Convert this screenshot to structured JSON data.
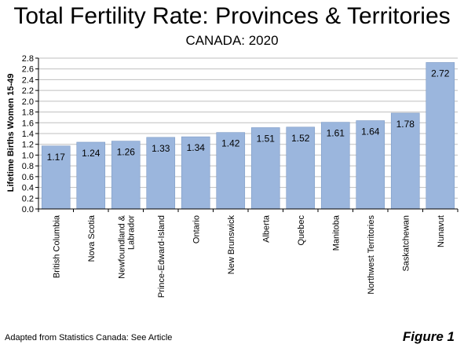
{
  "header": {
    "title": "Total Fertility Rate: Provinces & Territories",
    "subtitle": "CANADA: 2020"
  },
  "footer": {
    "source": "Adapted from Statistics Canada: See Article",
    "figure_label": "Figure 1"
  },
  "colors": {
    "bar": "#9bb6dd",
    "bar_stroke": "#7f9cc6",
    "axis": "#000000",
    "grid": "#bfbfbf"
  },
  "chart_data": {
    "type": "bar",
    "title": "Total Fertility Rate: Provinces & Territories",
    "subtitle": "CANADA: 2020",
    "xlabel": "",
    "ylabel": "Lifetime Births Women 15-49",
    "ylim": [
      0,
      2.8
    ],
    "yticks": [
      "0.0",
      "0.2",
      "0.4",
      "0.6",
      "0.8",
      "1.0",
      "1.2",
      "1.4",
      "1.6",
      "1.8",
      "2.0",
      "2.2",
      "2.4",
      "2.6",
      "2.8"
    ],
    "grid": true,
    "categories": [
      "British Columbia",
      "Nova Scotia",
      "Newfoundland & Labrador",
      "Prince-Edward-Island",
      "Ontario",
      "New Brunswick",
      "Alberta",
      "Quebec",
      "Manitoba",
      "Northwest Territories",
      "Saskatchewan",
      "Nunavut"
    ],
    "category_lines": [
      [
        "British Columbia"
      ],
      [
        "Nova Scotia"
      ],
      [
        "Newfoundland &",
        "Labrador"
      ],
      [
        "Prince-Edward-Island"
      ],
      [
        "Ontario"
      ],
      [
        "New Brunswick"
      ],
      [
        "Alberta"
      ],
      [
        "Quebec"
      ],
      [
        "Manitoba"
      ],
      [
        "Northwest Territories"
      ],
      [
        "Saskatchewan"
      ],
      [
        "Nunavut"
      ]
    ],
    "values": [
      1.17,
      1.24,
      1.26,
      1.33,
      1.34,
      1.42,
      1.51,
      1.52,
      1.61,
      1.64,
      1.78,
      2.72
    ],
    "data_labels": [
      "1.17",
      "1.24",
      "1.26",
      "1.33",
      "1.34",
      "1.42",
      "1.51",
      "1.52",
      "1.61",
      "1.64",
      "1.78",
      "2.72"
    ]
  }
}
